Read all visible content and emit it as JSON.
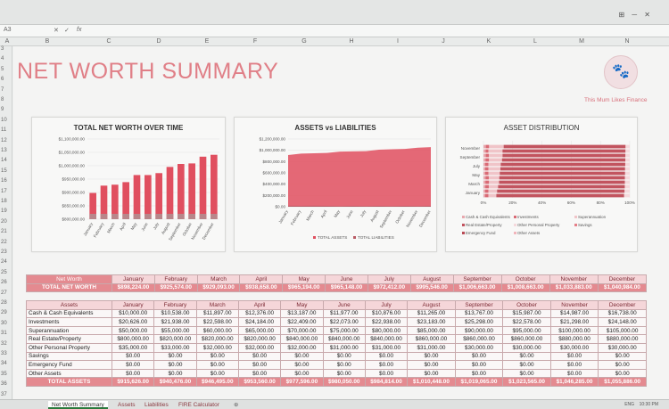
{
  "app": {
    "cell_ref": "A3",
    "fx": "fx",
    "window_controls": "⊞ ─ ✕",
    "columns": [
      "A",
      "B",
      "C",
      "D",
      "E",
      "F",
      "G",
      "H",
      "I",
      "J",
      "K",
      "L",
      "M",
      "N"
    ],
    "rows": [
      "3",
      "4",
      "5",
      "6",
      "7",
      "8",
      "9",
      "10",
      "11",
      "12",
      "13",
      "14",
      "15",
      "16",
      "17",
      "18",
      "19",
      "20",
      "21",
      "22",
      "23",
      "24",
      "25",
      "26",
      "27",
      "28",
      "29",
      "30",
      "31",
      "32",
      "33",
      "34",
      "35",
      "36",
      "37"
    ]
  },
  "header": {
    "title": "NET WORTH SUMMARY",
    "brand": "This Mum Likes Finance",
    "logo_glyph": "🐾"
  },
  "colors": {
    "accent": "#e48a90",
    "accent_dark": "#e07f87",
    "bar_fill": "#e04f5f",
    "bar_last": "#b8868a"
  },
  "charts": {
    "net_worth": {
      "title": "TOTAL NET WORTH OVER TIME",
      "y_ticks": [
        "$1,100,000.00",
        "$1,050,000.00",
        "$1,000,000.00",
        "$950,000.00",
        "$900,000.00",
        "$850,000.00",
        "$800,000.00"
      ]
    },
    "assets_liabilities": {
      "title": "ASSETS vs LIABILITIES",
      "y_ticks": [
        "$1,200,000.00",
        "$1,000,000.00",
        "$800,000.00",
        "$600,000.00",
        "$400,000.00",
        "$200,000.00",
        "$0.00"
      ],
      "legend": [
        "TOTAL ASSETS",
        "TOTAL LIABILITIES"
      ]
    },
    "distribution": {
      "title": "ASSET DISTRIBUTION",
      "y_labels": [
        "November",
        "September",
        "July",
        "May",
        "March",
        "January"
      ],
      "x_ticks": [
        "0%",
        "20%",
        "40%",
        "60%",
        "80%",
        "100%"
      ],
      "legend": [
        "Cash & Cash Equivalents",
        "Investments",
        "Superannuation",
        "Real Estate/Property",
        "Other Personal Property",
        "Savings",
        "Emergency Fund",
        "Other Assets"
      ]
    }
  },
  "chart_data": [
    {
      "type": "bar",
      "title": "TOTAL NET WORTH OVER TIME",
      "categories": [
        "January",
        "February",
        "March",
        "April",
        "May",
        "June",
        "July",
        "August",
        "September",
        "October",
        "November",
        "December"
      ],
      "values": [
        898224,
        925574,
        929093,
        938658,
        965194,
        965148,
        972412,
        995546,
        1006663,
        1008663,
        1033883,
        1040984
      ],
      "ylim": [
        800000,
        1100000
      ]
    },
    {
      "type": "area",
      "title": "ASSETS vs LIABILITIES",
      "categories": [
        "January",
        "February",
        "March",
        "April",
        "May",
        "June",
        "July",
        "August",
        "September",
        "October",
        "November",
        "December"
      ],
      "series": [
        {
          "name": "TOTAL ASSETS",
          "values": [
            915626,
            940476,
            946495,
            953560,
            977596,
            980050,
            984814,
            1010448,
            1019065,
            1023565,
            1046285,
            1055886
          ]
        },
        {
          "name": "TOTAL LIABILITIES",
          "values": [
            17402,
            14902,
            17402,
            14902,
            12402,
            14902,
            12402,
            14902,
            12402,
            14902,
            12402,
            14902
          ]
        }
      ],
      "ylim": [
        0,
        1200000
      ]
    },
    {
      "type": "bar",
      "title": "ASSET DISTRIBUTION",
      "categories": [
        "November",
        "September",
        "July",
        "May",
        "March",
        "January"
      ],
      "xlim": [
        0,
        100
      ]
    }
  ],
  "net_worth_table": {
    "label": "Net Worth",
    "total_label": "TOTAL NET WORTH",
    "months": [
      "January",
      "February",
      "March",
      "April",
      "May",
      "June",
      "July",
      "August",
      "September",
      "October",
      "November",
      "December"
    ],
    "values": [
      "$898,224.00",
      "$925,574.00",
      "$929,093.00",
      "$938,658.00",
      "$965,194.00",
      "$965,148.00",
      "$972,412.00",
      "$995,546.00",
      "$1,006,663.00",
      "$1,008,663.00",
      "$1,033,883.00",
      "$1,040,984.00"
    ]
  },
  "assets_table": {
    "header": "Assets",
    "months": [
      "January",
      "February",
      "March",
      "April",
      "May",
      "June",
      "July",
      "August",
      "September",
      "October",
      "November",
      "December"
    ],
    "rows": [
      {
        "label": "Cash & Cash Equivalents",
        "values": [
          "$10,000.00",
          "$10,538.00",
          "$11,897.00",
          "$12,376.00",
          "$13,187.00",
          "$11,977.00",
          "$10,876.00",
          "$11,265.00",
          "$13,767.00",
          "$15,987.00",
          "$14,987.00",
          "$16,738.00"
        ]
      },
      {
        "label": "Investments",
        "values": [
          "$20,626.00",
          "$21,938.00",
          "$22,598.00",
          "$24,184.00",
          "$22,409.00",
          "$22,073.00",
          "$22,938.00",
          "$23,183.00",
          "$25,298.00",
          "$22,578.00",
          "$21,298.00",
          "$24,148.00"
        ]
      },
      {
        "label": "Superannuation",
        "values": [
          "$50,000.00",
          "$55,000.00",
          "$60,000.00",
          "$65,000.00",
          "$70,000.00",
          "$75,000.00",
          "$80,000.00",
          "$85,000.00",
          "$90,000.00",
          "$95,000.00",
          "$100,000.00",
          "$105,000.00"
        ]
      },
      {
        "label": "Real Estate/Property",
        "values": [
          "$800,000.00",
          "$820,000.00",
          "$820,000.00",
          "$820,000.00",
          "$840,000.00",
          "$840,000.00",
          "$840,000.00",
          "$860,000.00",
          "$860,000.00",
          "$860,000.00",
          "$880,000.00",
          "$880,000.00"
        ]
      },
      {
        "label": "Other Personal Property",
        "values": [
          "$35,000.00",
          "$33,000.00",
          "$32,000.00",
          "$32,000.00",
          "$32,000.00",
          "$31,000.00",
          "$31,000.00",
          "$31,000.00",
          "$30,000.00",
          "$30,000.00",
          "$30,000.00",
          "$30,000.00"
        ]
      },
      {
        "label": "Savings",
        "values": [
          "$0.00",
          "$0.00",
          "$0.00",
          "$0.00",
          "$0.00",
          "$0.00",
          "$0.00",
          "$0.00",
          "$0.00",
          "$0.00",
          "$0.00",
          "$0.00"
        ]
      },
      {
        "label": "Emergency Fund",
        "values": [
          "$0.00",
          "$0.00",
          "$0.00",
          "$0.00",
          "$0.00",
          "$0.00",
          "$0.00",
          "$0.00",
          "$0.00",
          "$0.00",
          "$0.00",
          "$0.00"
        ]
      },
      {
        "label": "Other Assets",
        "values": [
          "$0.00",
          "$0.00",
          "$0.00",
          "$0.00",
          "$0.00",
          "$0.00",
          "$0.00",
          "$0.00",
          "$0.00",
          "$0.00",
          "$0.00",
          "$0.00"
        ]
      }
    ],
    "total_label": "TOTAL ASSETS",
    "totals": [
      "$915,626.00",
      "$940,476.00",
      "$946,495.00",
      "$953,560.00",
      "$977,596.00",
      "$980,050.00",
      "$984,814.00",
      "$1,010,448.00",
      "$1,019,065.00",
      "$1,023,565.00",
      "$1,046,285.00",
      "$1,055,886.00"
    ]
  },
  "tabs": [
    "Net Worth Summary",
    "Assets",
    "Liabilities",
    "FIRE Calculator"
  ],
  "status": {
    "lang": "ENG",
    "time": "10:30 PM"
  }
}
